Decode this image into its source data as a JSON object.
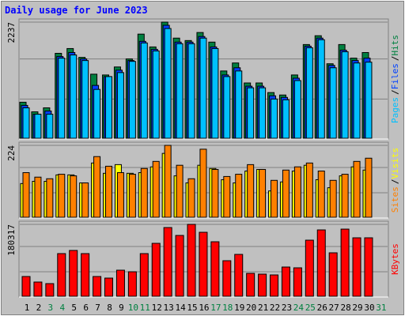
{
  "title": "Daily usage for June 2023",
  "legend_separator": "/",
  "chart_data": [
    {
      "type": "bar",
      "ylim": [
        0,
        2237
      ],
      "yticks": [
        2237
      ],
      "series": [
        {
          "name": "Hits",
          "color": "#008040",
          "values": [
            694,
            509,
            586,
            1636,
            1728,
            1558,
            1234,
            1219,
            1373,
            1528,
            2006,
            1759,
            2237,
            1929,
            1882,
            2037,
            1852,
            1296,
            1450,
            1065,
            1065,
            880,
            833,
            1219,
            1805,
            1975,
            1435,
            1805,
            1543,
            1651,
            null
          ]
        },
        {
          "name": "Files",
          "color": "#0040ff",
          "values": [
            633,
            463,
            525,
            1574,
            1651,
            1528,
            1018,
            1188,
            1312,
            1497,
            1867,
            1713,
            2176,
            1852,
            1852,
            1960,
            1759,
            1219,
            1358,
            1003,
            1003,
            818,
            787,
            1157,
            1774,
            1929,
            1404,
            1697,
            1497,
            1543,
            null
          ]
        },
        {
          "name": "Pages",
          "color": "#00c0ff",
          "values": [
            586,
            463,
            463,
            1543,
            1605,
            1497,
            941,
            1188,
            1265,
            1481,
            1836,
            1682,
            2114,
            1821,
            1821,
            1929,
            1728,
            1188,
            1296,
            972,
            972,
            756,
            741,
            1111,
            1744,
            1898,
            1358,
            1666,
            1450,
            1466,
            null
          ]
        }
      ]
    },
    {
      "type": "bar",
      "ylim": [
        0,
        224
      ],
      "yticks": [
        224
      ],
      "series": [
        {
          "name": "Visits",
          "color": "#ffff00",
          "values": [
            105,
            112,
            112,
            132,
            132,
            107,
            169,
            137,
            164,
            137,
            139,
            157,
            199,
            129,
            107,
            162,
            152,
            117,
            107,
            144,
            149,
            82,
            110,
            144,
            162,
            117,
            92,
            129,
            157,
            147,
            null
          ]
        },
        {
          "name": "Sites",
          "color": "#ff8000",
          "values": [
            139,
            125,
            120,
            134,
            129,
            107,
            189,
            159,
            139,
            134,
            152,
            174,
            224,
            162,
            120,
            212,
            149,
            127,
            134,
            164,
            149,
            115,
            147,
            157,
            169,
            144,
            115,
            134,
            174,
            184,
            null
          ]
        }
      ]
    },
    {
      "type": "bar",
      "ylim": [
        0,
        180317
      ],
      "yticks": [
        180317
      ],
      "categories": [
        "1",
        "2",
        "3",
        "4",
        "5",
        "6",
        "7",
        "8",
        "9",
        "10",
        "11",
        "12",
        "13",
        "14",
        "15",
        "16",
        "17",
        "18",
        "19",
        "20",
        "21",
        "22",
        "23",
        "24",
        "25",
        "26",
        "27",
        "28",
        "29",
        "30",
        "31"
      ],
      "category_colors": [
        "#000000",
        "#000000",
        "#008040",
        "#008040",
        "#000000",
        "#000000",
        "#000000",
        "#000000",
        "#000000",
        "#008040",
        "#008040",
        "#000000",
        "#000000",
        "#000000",
        "#000000",
        "#000000",
        "#008040",
        "#008040",
        "#000000",
        "#000000",
        "#000000",
        "#000000",
        "#000000",
        "#008040",
        "#008040",
        "#000000",
        "#000000",
        "#000000",
        "#000000",
        "#000000",
        "#008040"
      ],
      "series": [
        {
          "name": "KBytes",
          "color": "#ff0000",
          "values": [
            49525,
            35658,
            31696,
            106974,
            114898,
            106974,
            49525,
            45563,
            65373,
            61411,
            106974,
            132727,
            172347,
            152537,
            180317,
            160461,
            136689,
            89145,
            104993,
            57449,
            55468,
            53487,
            73297,
            71316,
            140651,
            166404,
            108955,
            168385,
            146594,
            146594,
            null
          ]
        }
      ]
    }
  ]
}
